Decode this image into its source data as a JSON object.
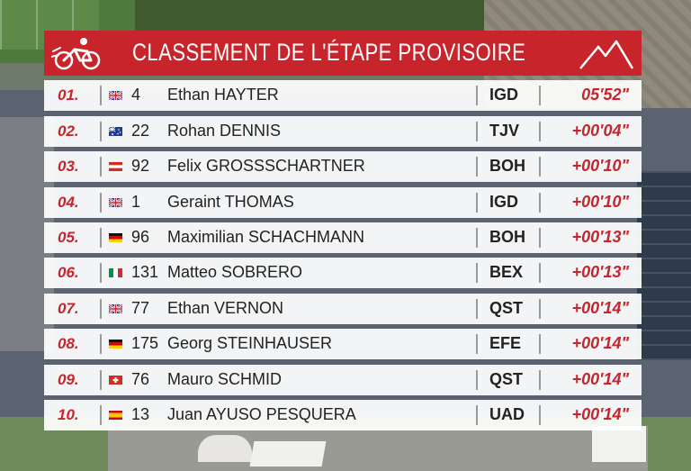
{
  "header": {
    "title": "CLASSEMENT DE L'ÉTAPE PROVISOIRE",
    "left_icon": "cyclist-icon",
    "right_icon": "mountain-icon",
    "accent_color": "#c8242b"
  },
  "rows": [
    {
      "pos": "01.",
      "flag": "gb",
      "num": "4",
      "name": "Ethan HAYTER",
      "team": "IGD",
      "time": "05'52\""
    },
    {
      "pos": "02.",
      "flag": "au",
      "num": "22",
      "name": "Rohan DENNIS",
      "team": "TJV",
      "time": "+00'04\""
    },
    {
      "pos": "03.",
      "flag": "at",
      "num": "92",
      "name": "Felix GROSSSCHARTNER",
      "team": "BOH",
      "time": "+00'10\""
    },
    {
      "pos": "04.",
      "flag": "gb",
      "num": "1",
      "name": "Geraint THOMAS",
      "team": "IGD",
      "time": "+00'10\""
    },
    {
      "pos": "05.",
      "flag": "de",
      "num": "96",
      "name": "Maximilian SCHACHMANN",
      "team": "BOH",
      "time": "+00'13\""
    },
    {
      "pos": "06.",
      "flag": "it",
      "num": "131",
      "name": "Matteo SOBRERO",
      "team": "BEX",
      "time": "+00'13\""
    },
    {
      "pos": "07.",
      "flag": "gb",
      "num": "77",
      "name": "Ethan VERNON",
      "team": "QST",
      "time": "+00'14\""
    },
    {
      "pos": "08.",
      "flag": "de",
      "num": "175",
      "name": "Georg STEINHAUSER",
      "team": "EFE",
      "time": "+00'14\""
    },
    {
      "pos": "09.",
      "flag": "ch",
      "num": "76",
      "name": "Mauro SCHMID",
      "team": "QST",
      "time": "+00'14\""
    },
    {
      "pos": "10.",
      "flag": "es",
      "num": "13",
      "name": "Juan AYUSO PESQUERA",
      "team": "UAD",
      "time": "+00'14\""
    }
  ]
}
